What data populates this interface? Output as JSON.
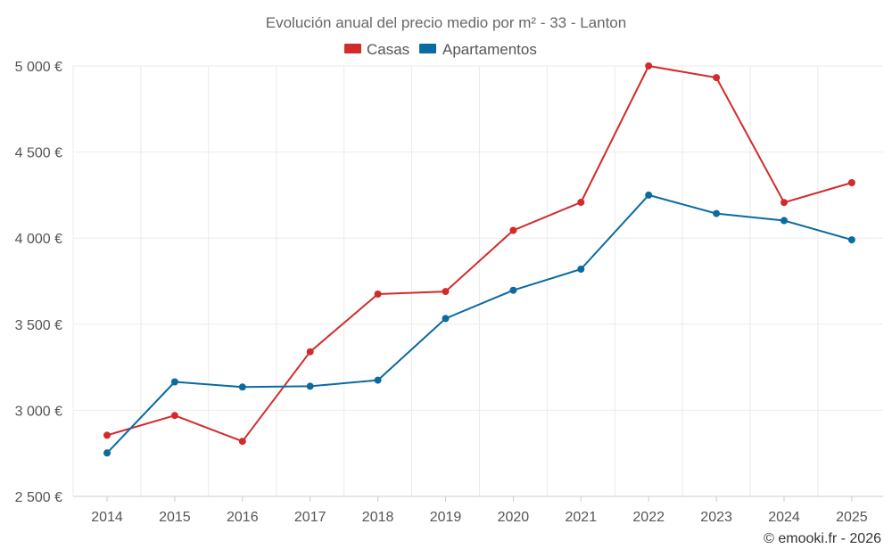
{
  "chart_data": {
    "type": "line",
    "title": "Evolución anual del precio medio por m² - 33 - Lanton",
    "categories": [
      "2014",
      "2015",
      "2016",
      "2017",
      "2018",
      "2019",
      "2020",
      "2021",
      "2022",
      "2023",
      "2024",
      "2025"
    ],
    "series": [
      {
        "name": "Casas",
        "color": "#d32a2a",
        "values": [
          2855,
          2970,
          2820,
          3340,
          3675,
          3690,
          4045,
          4208,
          5000,
          4932,
          4207,
          4322
        ]
      },
      {
        "name": "Apartamentos",
        "color": "#0a6aa1",
        "values": [
          2752,
          3165,
          3135,
          3140,
          3175,
          3533,
          3697,
          3820,
          4250,
          4143,
          4102,
          3990
        ]
      }
    ],
    "ylim": [
      2500,
      5000
    ],
    "yticks": [
      2500,
      3000,
      3500,
      4000,
      4500,
      5000
    ],
    "ytick_labels": [
      "2 500 €",
      "3 000 €",
      "3 500 €",
      "4 000 €",
      "4 500 €",
      "5 000 €"
    ],
    "xlabel": "",
    "ylabel": "",
    "grid": true,
    "legend_position": "top-center"
  },
  "credit": "© emooki.fr - 2026"
}
